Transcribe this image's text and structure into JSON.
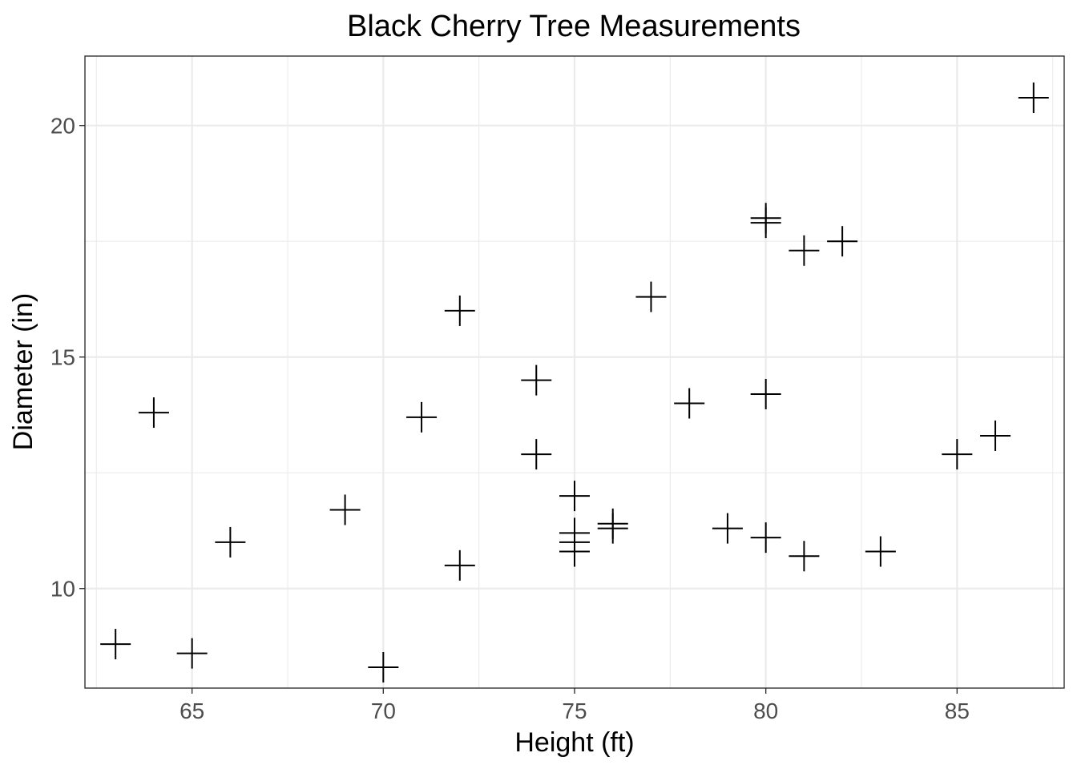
{
  "chart_data": {
    "type": "scatter",
    "title": "Black Cherry Tree Measurements",
    "xlabel": "Height (ft)",
    "ylabel": "Diameter (in)",
    "xlim": [
      62.2,
      87.8
    ],
    "ylim": [
      7.85,
      21.5
    ],
    "x_ticks": [
      65,
      70,
      75,
      80,
      85
    ],
    "y_ticks": [
      10,
      15,
      20
    ],
    "grid": true,
    "marker": "plus",
    "colors": {
      "points": "#000000",
      "grid": "#ebebeb",
      "border": "#333333"
    },
    "points": [
      {
        "x": 63,
        "y": 8.8
      },
      {
        "x": 64,
        "y": 13.8
      },
      {
        "x": 65,
        "y": 8.6
      },
      {
        "x": 66,
        "y": 11.0
      },
      {
        "x": 69,
        "y": 11.7
      },
      {
        "x": 70,
        "y": 8.3
      },
      {
        "x": 71,
        "y": 13.7
      },
      {
        "x": 72,
        "y": 10.5
      },
      {
        "x": 72,
        "y": 16.0
      },
      {
        "x": 74,
        "y": 12.9
      },
      {
        "x": 74,
        "y": 14.5
      },
      {
        "x": 75,
        "y": 10.8
      },
      {
        "x": 75,
        "y": 11.0
      },
      {
        "x": 75,
        "y": 11.2
      },
      {
        "x": 75,
        "y": 12.0
      },
      {
        "x": 76,
        "y": 11.3
      },
      {
        "x": 76,
        "y": 11.4
      },
      {
        "x": 77,
        "y": 16.3
      },
      {
        "x": 78,
        "y": 14.0
      },
      {
        "x": 79,
        "y": 11.3
      },
      {
        "x": 80,
        "y": 11.1
      },
      {
        "x": 80,
        "y": 14.2
      },
      {
        "x": 80,
        "y": 17.9
      },
      {
        "x": 80,
        "y": 18.0
      },
      {
        "x": 81,
        "y": 10.7
      },
      {
        "x": 81,
        "y": 17.3
      },
      {
        "x": 82,
        "y": 17.5
      },
      {
        "x": 83,
        "y": 10.8
      },
      {
        "x": 85,
        "y": 12.9
      },
      {
        "x": 86,
        "y": 13.3
      },
      {
        "x": 87,
        "y": 20.6
      }
    ]
  }
}
